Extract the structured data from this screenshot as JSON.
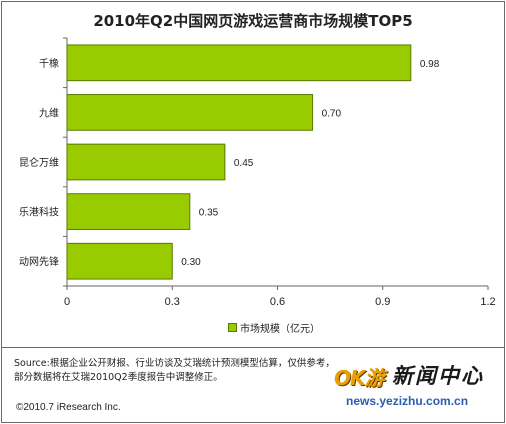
{
  "chart_data": {
    "type": "bar",
    "orientation": "horizontal",
    "title": "2010年Q2中国网页游戏运营商市场规模TOP5",
    "categories": [
      "千橡",
      "九维",
      "昆仑万维",
      "乐港科技",
      "动网先锋"
    ],
    "series": [
      {
        "name": "市场规模（亿元）",
        "values": [
          0.98,
          0.7,
          0.45,
          0.35,
          0.3
        ]
      }
    ],
    "data_labels": [
      "0.98",
      "0.70",
      "0.45",
      "0.35",
      "0.30"
    ],
    "xlim": [
      0,
      1.2
    ],
    "xticks": [
      "0",
      "0.3",
      "0.6",
      "0.9",
      "1.2"
    ],
    "grid": false,
    "legend_position": "bottom",
    "bar_color": "#99cc00",
    "bar_edge_color": "#5a7a00"
  },
  "footer": {
    "source": "Source:根据企业公开财报、行业访谈及艾瑞统计预测模型估算，仅供参考，部分数据将在艾瑞2010Q2季度报告中调整修正。",
    "copyright": "©2010.7 iResearch Inc."
  },
  "watermark": {
    "badge": "OK游",
    "name": "新闻中心",
    "url": "news.yezizhu.com.cn"
  }
}
